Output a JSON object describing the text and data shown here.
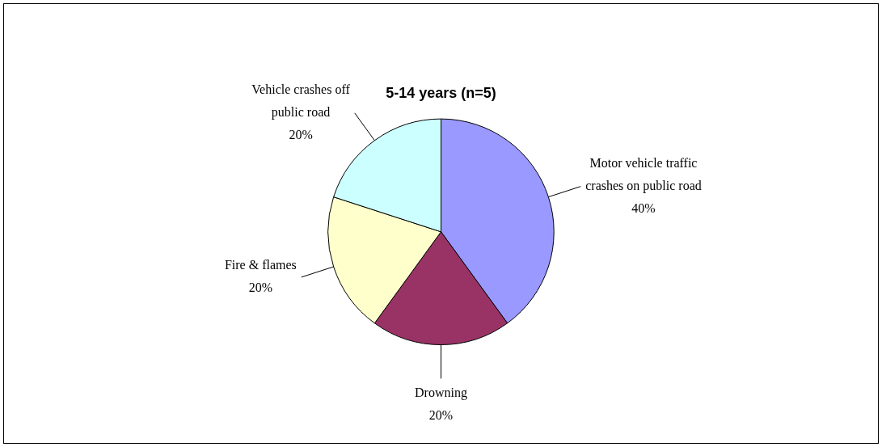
{
  "chart_data": {
    "type": "pie",
    "title": "5-14 years (n=5)",
    "categories": [
      "Motor vehicle traffic crashes on public road",
      "Drowning",
      "Fire & flames",
      "Vehicle crashes off public road"
    ],
    "values": [
      40,
      20,
      20,
      20
    ],
    "value_labels": [
      "40%",
      "20%",
      "20%",
      "20%"
    ],
    "colors": [
      "#9999ff",
      "#993366",
      "#ffffcc",
      "#ccffff"
    ],
    "legend": false
  }
}
